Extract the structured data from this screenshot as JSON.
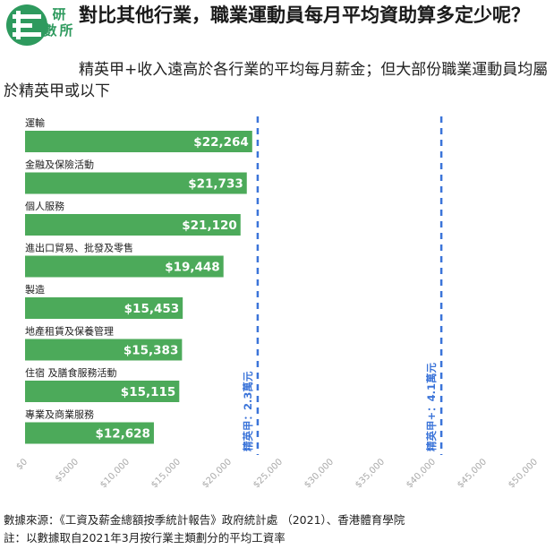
{
  "header": {
    "logo_text": [
      "研",
      "數",
      "所"
    ],
    "logo_color": "#2e9a5e",
    "title": "對比其他行業，職業運動員每月平均資助算多定少呢？",
    "subtitle": "精英甲+收入遠高於各行業的平均每月薪金；但大部份職業運動員均屬於精英甲或以下"
  },
  "chart_data": {
    "type": "bar",
    "orientation": "horizontal",
    "categories": [
      "運輸",
      "金融及保險活動",
      "個人服務",
      "進出口貿易、批發及零售",
      "製造",
      "地產租賃及保養管理",
      "住宿 及膳食服務活動",
      "專業及商業服務"
    ],
    "values": [
      22264,
      21733,
      21120,
      19448,
      15453,
      15383,
      15115,
      12628
    ],
    "value_labels": [
      "$22,264",
      "$21,733",
      "$21,120",
      "$19,448",
      "$15,453",
      "$15,383",
      "$15,115",
      "$12,628"
    ],
    "xlim": [
      0,
      50000
    ],
    "x_ticks": [
      0,
      5000,
      10000,
      15000,
      20000,
      25000,
      30000,
      35000,
      40000,
      45000,
      50000
    ],
    "x_tick_labels": [
      "$0",
      "$5000",
      "$10,000",
      "$15,000",
      "$20,000",
      "$25,000",
      "$30,000",
      "$35,000",
      "$40,000",
      "$45,000",
      "$50,000"
    ],
    "bar_color": "#4caa5a",
    "reference_lines": [
      {
        "value": 22800,
        "label": "精英甲：2.3萬元"
      },
      {
        "value": 40800,
        "label": "精英甲+：4.1萬元"
      }
    ],
    "reference_color": "#3b74d9",
    "grid": false
  },
  "footer": {
    "source": "數據來源：《工資及薪金總額按季統計報告》政府統計處 （2021）、香港體育學院",
    "note": "註：以數據取自2021年3月按行業主類劃分的平均工資率"
  }
}
